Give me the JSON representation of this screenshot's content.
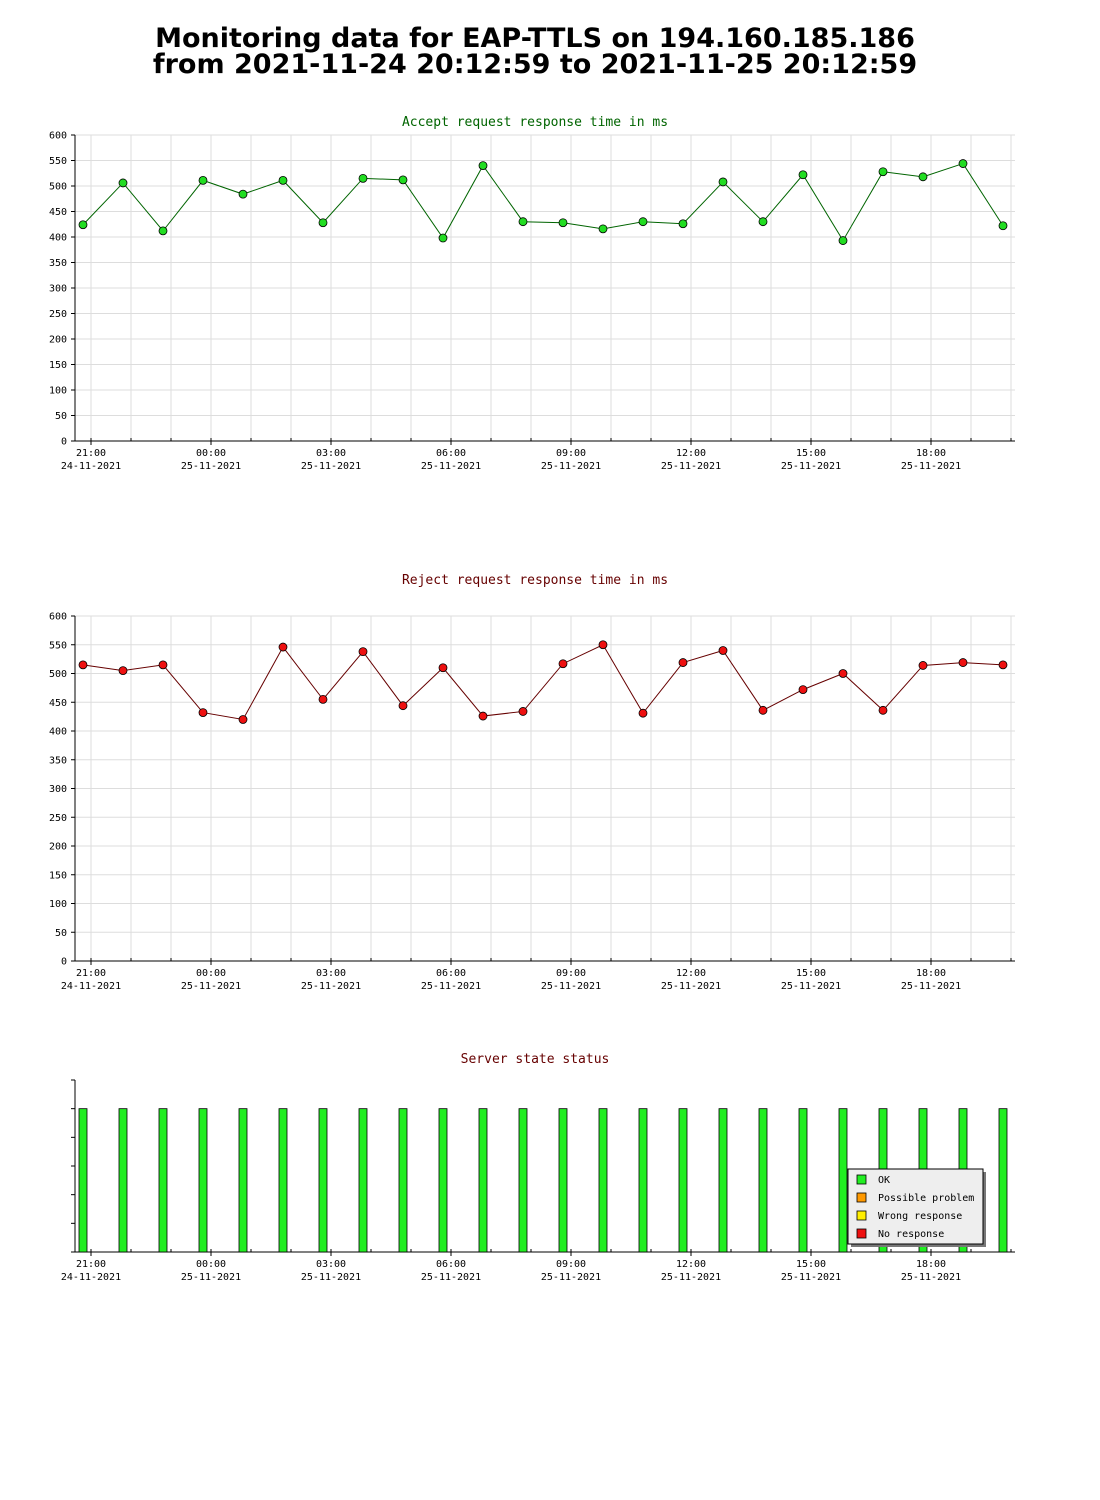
{
  "page": {
    "title_line1": "Monitoring data for EAP-TTLS on 194.160.185.186",
    "title_line2": "from 2021-11-24 20:12:59 to 2021-11-25 20:12:59"
  },
  "time_axis": {
    "ticks": [
      {
        "time": "21:00",
        "date": "24-11-2021"
      },
      {
        "time": "00:00",
        "date": "25-11-2021"
      },
      {
        "time": "03:00",
        "date": "25-11-2021"
      },
      {
        "time": "06:00",
        "date": "25-11-2021"
      },
      {
        "time": "09:00",
        "date": "25-11-2021"
      },
      {
        "time": "12:00",
        "date": "25-11-2021"
      },
      {
        "time": "15:00",
        "date": "25-11-2021"
      },
      {
        "time": "18:00",
        "date": "25-11-2021"
      }
    ]
  },
  "chart_data": [
    {
      "type": "line",
      "title": "Accept request response time in ms",
      "title_color": "#006400",
      "line_color": "#006400",
      "marker_color": "#22dd22",
      "x_label": "",
      "y_label": "",
      "ylim": [
        0,
        600
      ],
      "y_ticks": [
        0,
        50,
        100,
        150,
        200,
        250,
        300,
        350,
        400,
        450,
        500,
        550,
        600
      ],
      "x_hours_offset_start": 0,
      "x_range_hours": [
        -0.2,
        23.3
      ],
      "x": [
        0,
        1,
        2,
        3,
        4,
        5,
        6,
        7,
        8,
        9,
        10,
        11,
        12,
        13,
        14,
        15,
        16,
        17,
        18,
        19,
        20,
        21,
        22,
        23
      ],
      "values": [
        424,
        506,
        412,
        511,
        484,
        511,
        428,
        515,
        512,
        398,
        540,
        430,
        428,
        416,
        430,
        426,
        508,
        430,
        522,
        393,
        528,
        518,
        544,
        422
      ],
      "grid": true
    },
    {
      "type": "line",
      "title": "Reject request response time in ms",
      "title_color": "#660000",
      "line_color": "#660000",
      "marker_color": "#ee1111",
      "x_label": "",
      "y_label": "",
      "ylim": [
        0,
        600
      ],
      "y_ticks": [
        0,
        50,
        100,
        150,
        200,
        250,
        300,
        350,
        400,
        450,
        500,
        550,
        600
      ],
      "x_range_hours": [
        -0.2,
        23.3
      ],
      "x": [
        0,
        1,
        2,
        3,
        4,
        5,
        6,
        7,
        8,
        9,
        10,
        11,
        12,
        13,
        14,
        15,
        16,
        17,
        18,
        19,
        20,
        21,
        22,
        23
      ],
      "values": [
        515,
        505,
        515,
        432,
        420,
        546,
        455,
        538,
        444,
        510,
        426,
        434,
        517,
        550,
        431,
        519,
        540,
        436,
        472,
        500,
        436,
        514,
        519,
        515
      ],
      "grid": true
    },
    {
      "type": "bar",
      "title": "Server state status",
      "title_color": "#660000",
      "x_range_hours": [
        -0.2,
        23.3
      ],
      "x": [
        0,
        1,
        2,
        3,
        4,
        5,
        6,
        7,
        8,
        9,
        10,
        11,
        12,
        13,
        14,
        15,
        16,
        17,
        18,
        19,
        20,
        21,
        22,
        23
      ],
      "states": [
        "OK",
        "OK",
        "OK",
        "OK",
        "OK",
        "OK",
        "OK",
        "OK",
        "OK",
        "OK",
        "OK",
        "OK",
        "OK",
        "OK",
        "OK",
        "OK",
        "OK",
        "OK",
        "OK",
        "OK",
        "OK",
        "OK",
        "OK",
        "OK"
      ],
      "legend": {
        "placement": "bottom-right",
        "items": [
          {
            "label": "OK",
            "color": "#22ee22"
          },
          {
            "label": "Possible problem",
            "color": "#ff9900"
          },
          {
            "label": "Wrong response",
            "color": "#ffee00"
          },
          {
            "label": "No response",
            "color": "#ee1111"
          }
        ]
      }
    }
  ]
}
